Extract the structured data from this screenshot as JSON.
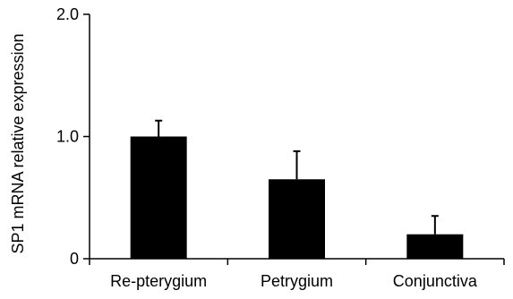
{
  "chart_data": {
    "type": "bar",
    "title": "",
    "xlabel": "",
    "ylabel": "SP1 mRNA relative expression",
    "categories": [
      "Re-pterygium",
      "Petrygium",
      "Conjunctiva"
    ],
    "values": [
      1.0,
      0.65,
      0.2
    ],
    "errors": [
      0.13,
      0.23,
      0.15
    ],
    "ylim": [
      0,
      2.0
    ],
    "yticks": [
      0,
      1.0,
      2.0
    ],
    "ytick_labels": [
      "0",
      "1.0",
      "2.0"
    ],
    "grid": false,
    "legend": "none",
    "bar_color": "#000000"
  }
}
